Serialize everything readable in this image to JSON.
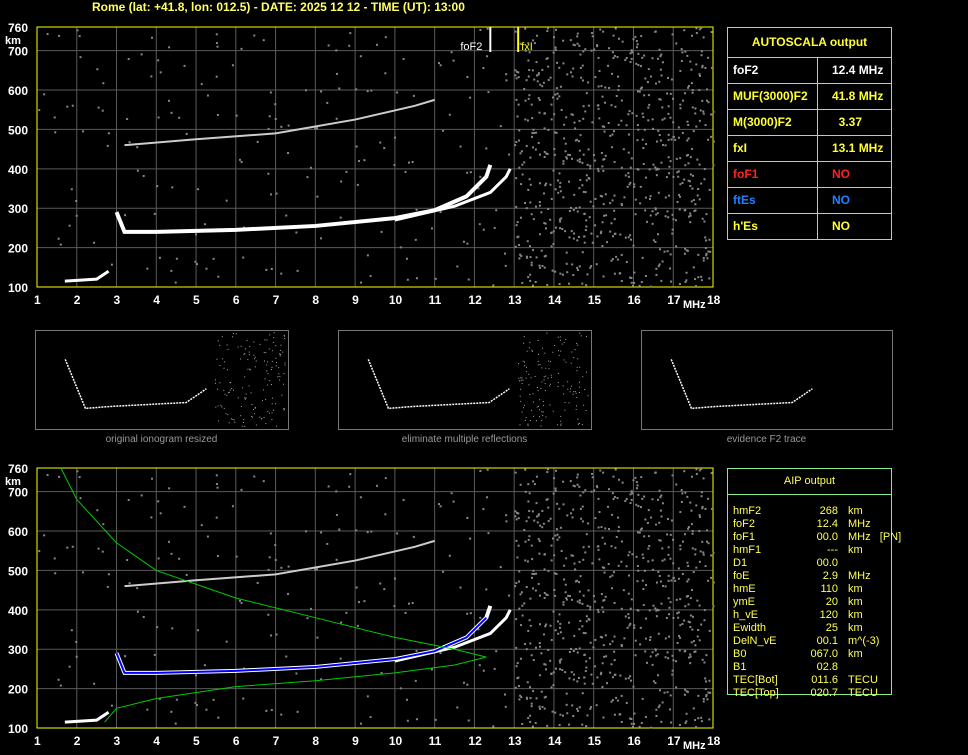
{
  "title": "Rome (lat: +41.8, lon: 012.5) - DATE: 2025 12 12 - TIME (UT): 13:00",
  "axes": {
    "x_ticks": [
      "1",
      "2",
      "3",
      "4",
      "5",
      "6",
      "7",
      "8",
      "9",
      "10",
      "11",
      "12",
      "13",
      "14",
      "15",
      "16",
      "17",
      "18"
    ],
    "x_unit": "MHz",
    "y_ticks": [
      "100",
      "200",
      "300",
      "400",
      "500",
      "600",
      "700",
      "760"
    ],
    "y_unit": "km"
  },
  "markers": {
    "foF2": "foF2",
    "fxI": "fxI"
  },
  "autoscala": {
    "title": "AUTOSCALA output",
    "rows": [
      {
        "k": "foF2",
        "v": "12.4 MHz",
        "color": "#ffffff"
      },
      {
        "k": "MUF(3000)F2",
        "v": "41.8 MHz",
        "color": "#ffff33"
      },
      {
        "k": "M(3000)F2",
        "v": "  3.37",
        "color": "#ffff33"
      },
      {
        "k": "fxI",
        "v": "13.1 MHz",
        "color": "#ffff33"
      },
      {
        "k": "foF1",
        "v": "NO",
        "color": "#ff2020"
      },
      {
        "k": "ftEs",
        "v": "NO",
        "color": "#2080ff"
      },
      {
        "k": "h'Es",
        "v": "NO",
        "color": "#ffff33"
      }
    ]
  },
  "captions": [
    "original ionogram resized",
    "eliminate multiple reflections",
    "evidence F2 trace"
  ],
  "aip": {
    "title": "AIP output",
    "rows": [
      [
        "hmF2",
        "268",
        "km"
      ],
      [
        "foF2",
        "12.4",
        "MHz"
      ],
      [
        "foF1",
        "00.0",
        "MHz   [PN]"
      ],
      [
        "hmF1",
        "---",
        "km"
      ],
      [
        "D1",
        "00.0",
        ""
      ],
      [
        "foE",
        "2.9",
        "MHz"
      ],
      [
        "hmE",
        "110",
        "km"
      ],
      [
        "ymE",
        "20",
        "km"
      ],
      [
        "h_vE",
        "120",
        "km"
      ],
      [
        "Ewidth",
        "25",
        "km"
      ],
      [
        "DelN_vE",
        "00.1",
        "m^(-3)"
      ],
      [
        "B0",
        "067.0",
        "km"
      ],
      [
        "B1",
        "02.8",
        ""
      ],
      [
        "TEC[Bot]",
        "011.6",
        "TECU"
      ],
      [
        "TEC[Top]",
        "020.7",
        "TECU"
      ]
    ]
  },
  "colors": {
    "frame": "#ffff00",
    "grid": "#5a5a5a",
    "table_border": "#88ee88",
    "profile": "#00cc00",
    "fit": "#0000ff"
  }
}
